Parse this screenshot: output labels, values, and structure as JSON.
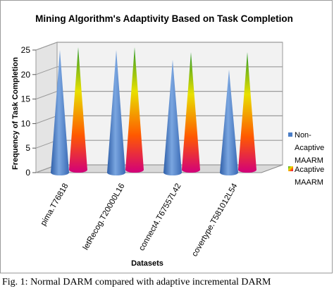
{
  "chart_data": {
    "type": "bar",
    "shape": "cone",
    "title": "Mining Algorithm's Adaptivity Based on Task Completion",
    "xlabel": "Datasets",
    "ylabel": "Frequency of Task Completion",
    "ylim": [
      0,
      25
    ],
    "yticks": [
      "0",
      "5",
      "10",
      "15",
      "20",
      "25"
    ],
    "grid": true,
    "legend_position": "right",
    "categories": [
      "pima.T76818",
      "letRecog.T20000L16",
      "connect4.T67557L42",
      "covertype.T581012L54"
    ],
    "series": [
      {
        "name": "Non-Adaptive MAARM",
        "color": "#4a7ec7",
        "values": [
          25,
          25,
          23,
          21
        ]
      },
      {
        "name": "Adaptive MAARM",
        "color": "#e8e000",
        "values": [
          25,
          25,
          24,
          24
        ]
      }
    ],
    "legend": {
      "non_adaptive_lines": [
        "Non-",
        "Acaptive",
        "MAARM"
      ],
      "adaptive_lines": [
        "Acaptive",
        "MAARM"
      ]
    }
  },
  "caption": "Fig. 1: Normal DARM compared with adaptive incremental DARM"
}
